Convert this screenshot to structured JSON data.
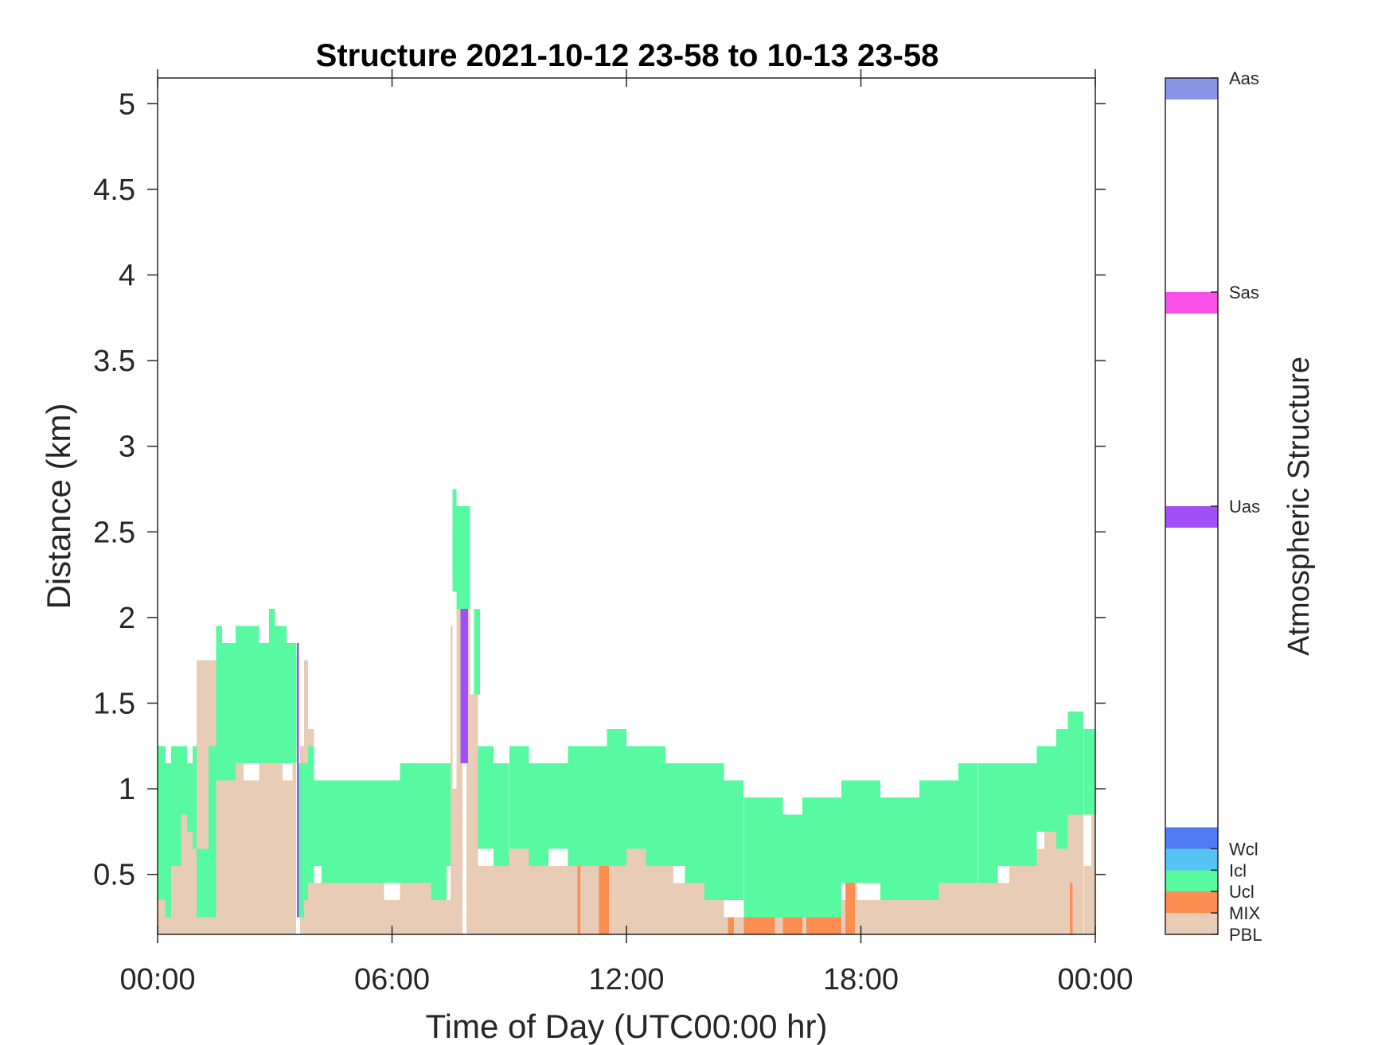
{
  "chart_data": {
    "type": "heatmap",
    "title": "Structure 2021-10-12 23-58 to 10-13 23-58",
    "xlabel": "Time of Day (UTC00:00 hr)",
    "ylabel": "Distance (km)",
    "xlim": [
      0,
      24
    ],
    "ylim": [
      0.15,
      5.15
    ],
    "x_ticks": [
      {
        "value": 0,
        "label": "00:00"
      },
      {
        "value": 6,
        "label": "06:00"
      },
      {
        "value": 12,
        "label": "12:00"
      },
      {
        "value": 18,
        "label": "18:00"
      },
      {
        "value": 24,
        "label": "00:00"
      }
    ],
    "y_ticks": [
      {
        "value": 0.5,
        "label": "0.5"
      },
      {
        "value": 1,
        "label": "1"
      },
      {
        "value": 1.5,
        "label": "1.5"
      },
      {
        "value": 2,
        "label": "2"
      },
      {
        "value": 2.5,
        "label": "2.5"
      },
      {
        "value": 3,
        "label": "3"
      },
      {
        "value": 3.5,
        "label": "3.5"
      },
      {
        "value": 4,
        "label": "4"
      },
      {
        "value": 4.5,
        "label": "4.5"
      },
      {
        "value": 5,
        "label": "5"
      }
    ],
    "grid": false,
    "colorbar": {
      "title": "Atmospheric Structure",
      "min": 0,
      "max": 20,
      "categories": [
        {
          "label": "Aas",
          "color": "#8B95E8",
          "from": 19.5,
          "to": 20,
          "tick": 20
        },
        {
          "label": "Sas",
          "color": "#FA50EA",
          "from": 14.5,
          "to": 15,
          "tick": 15
        },
        {
          "label": "Uas",
          "color": "#A050F5",
          "from": 9.5,
          "to": 10,
          "tick": 10
        },
        {
          "label": "Wcl",
          "color": "#4F7BF5",
          "from": 2,
          "to": 2.5,
          "tick": 2
        },
        {
          "label": "Icl",
          "color": "#55C4F5",
          "from": 1.5,
          "to": 2,
          "tick": 1.5
        },
        {
          "label": "Ucl",
          "color": "#57FAA0",
          "from": 1,
          "to": 1.5,
          "tick": 1
        },
        {
          "label": "MIX",
          "color": "#FC8E52",
          "from": 0.5,
          "to": 1,
          "tick": 0.5
        },
        {
          "label": "PBL",
          "color": "#E9CCB5",
          "from": 0,
          "to": 0.5,
          "tick": 0
        }
      ]
    },
    "series": [
      {
        "name": "PBL",
        "color": "#E9CCB5",
        "segments": [
          [
            0.0,
            0.2,
            0.15,
            0.35
          ],
          [
            0.2,
            0.35,
            0.15,
            0.25
          ],
          [
            0.35,
            0.5,
            0.15,
            0.55
          ],
          [
            0.5,
            0.6,
            0.15,
            0.65
          ],
          [
            0.6,
            0.75,
            0.15,
            0.85
          ],
          [
            0.75,
            0.9,
            0.15,
            0.75
          ],
          [
            0.9,
            1.0,
            0.15,
            0.65
          ],
          [
            1.0,
            1.25,
            0.15,
            1.75
          ],
          [
            1.25,
            1.5,
            0.15,
            1.75
          ],
          [
            1.5,
            1.65,
            0.15,
            1.05
          ],
          [
            1.65,
            2.0,
            0.15,
            1.05
          ],
          [
            2.0,
            2.2,
            0.15,
            1.15
          ],
          [
            2.2,
            2.6,
            0.15,
            1.05
          ],
          [
            2.6,
            3.2,
            0.15,
            1.15
          ],
          [
            3.2,
            3.45,
            0.15,
            1.05
          ],
          [
            3.45,
            3.55,
            0.15,
            1.15
          ],
          [
            3.65,
            3.75,
            0.15,
            1.25
          ],
          [
            3.75,
            3.85,
            0.15,
            1.75
          ],
          [
            3.85,
            4.0,
            0.15,
            1.35
          ],
          [
            4.0,
            4.5,
            0.15,
            0.45
          ],
          [
            4.5,
            5.8,
            0.15,
            0.45
          ],
          [
            5.8,
            6.2,
            0.15,
            0.35
          ],
          [
            6.2,
            7.0,
            0.15,
            0.45
          ],
          [
            7.0,
            7.5,
            0.15,
            0.35
          ],
          [
            7.5,
            7.55,
            0.15,
            1.95
          ],
          [
            7.55,
            7.65,
            0.15,
            1.0
          ],
          [
            7.65,
            7.8,
            0.15,
            2.05
          ],
          [
            7.9,
            8.0,
            0.15,
            2.05
          ],
          [
            8.0,
            8.2,
            0.15,
            1.55
          ],
          [
            8.2,
            8.8,
            0.15,
            0.55
          ],
          [
            8.8,
            10.0,
            0.15,
            0.65
          ],
          [
            10.0,
            10.5,
            0.15,
            0.55
          ],
          [
            10.5,
            11.0,
            0.15,
            0.65
          ],
          [
            11.0,
            11.6,
            0.15,
            0.55
          ],
          [
            11.6,
            12.5,
            0.15,
            0.65
          ],
          [
            12.5,
            13.2,
            0.15,
            0.55
          ],
          [
            13.2,
            14.2,
            0.15,
            0.45
          ],
          [
            14.2,
            14.5,
            0.15,
            0.35
          ],
          [
            14.5,
            15.2,
            0.15,
            0.25
          ],
          [
            15.2,
            16.0,
            0.15,
            0.25
          ],
          [
            16.0,
            16.5,
            0.15,
            0.25
          ],
          [
            16.5,
            17.2,
            0.15,
            0.25
          ],
          [
            17.2,
            17.6,
            0.15,
            0.35
          ],
          [
            17.6,
            17.9,
            0.15,
            0.45
          ],
          [
            17.9,
            18.5,
            0.15,
            0.35
          ],
          [
            18.5,
            19.3,
            0.15,
            0.45
          ],
          [
            19.3,
            20.0,
            0.15,
            0.35
          ],
          [
            20.0,
            20.8,
            0.15,
            0.45
          ],
          [
            20.8,
            21.8,
            0.15,
            0.45
          ],
          [
            21.8,
            22.3,
            0.15,
            0.55
          ],
          [
            22.3,
            22.7,
            0.15,
            0.65
          ],
          [
            22.7,
            23.0,
            0.15,
            0.75
          ],
          [
            23.0,
            23.3,
            0.15,
            0.65
          ],
          [
            23.3,
            23.7,
            0.15,
            0.85
          ],
          [
            23.7,
            23.9,
            0.15,
            0.55
          ],
          [
            23.9,
            24.0,
            0.15,
            0.85
          ]
        ]
      },
      {
        "name": "MIX",
        "color": "#FC8E52",
        "segments": [
          [
            10.75,
            10.82,
            0.15,
            0.55
          ],
          [
            11.3,
            11.55,
            0.15,
            0.55
          ],
          [
            14.6,
            14.75,
            0.15,
            0.25
          ],
          [
            15.0,
            15.6,
            0.15,
            0.25
          ],
          [
            15.6,
            15.8,
            0.15,
            0.35
          ],
          [
            16.0,
            16.5,
            0.15,
            0.25
          ],
          [
            16.6,
            17.5,
            0.15,
            0.25
          ],
          [
            17.6,
            17.85,
            0.15,
            0.45
          ],
          [
            23.35,
            23.42,
            0.15,
            0.45
          ]
        ]
      },
      {
        "name": "Ucl",
        "color": "#57FAA0",
        "segments": [
          [
            0.0,
            0.2,
            0.35,
            1.25
          ],
          [
            0.2,
            0.35,
            0.25,
            1.15
          ],
          [
            0.35,
            0.6,
            0.55,
            1.25
          ],
          [
            0.6,
            0.75,
            0.85,
            1.25
          ],
          [
            0.75,
            0.9,
            0.75,
            1.15
          ],
          [
            0.9,
            1.0,
            0.65,
            1.25
          ],
          [
            1.0,
            1.25,
            1.75,
            1.15
          ],
          [
            1.0,
            1.5,
            0.25,
            0.65
          ],
          [
            1.3,
            1.5,
            0.25,
            1.25
          ],
          [
            1.5,
            1.65,
            1.05,
            1.95
          ],
          [
            1.65,
            2.0,
            1.05,
            1.85
          ],
          [
            2.0,
            2.6,
            1.15,
            1.95
          ],
          [
            2.6,
            2.85,
            1.15,
            1.85
          ],
          [
            2.85,
            3.0,
            1.15,
            2.05
          ],
          [
            3.0,
            3.3,
            1.15,
            1.95
          ],
          [
            3.3,
            3.55,
            1.15,
            1.85
          ],
          [
            3.62,
            3.75,
            0.25,
            1.15
          ],
          [
            3.75,
            3.85,
            0.35,
            1.15
          ],
          [
            3.85,
            4.0,
            0.45,
            1.25
          ],
          [
            4.0,
            4.2,
            0.55,
            1.05
          ],
          [
            4.2,
            4.5,
            0.45,
            1.05
          ],
          [
            4.5,
            6.2,
            0.45,
            1.05
          ],
          [
            6.2,
            7.0,
            0.45,
            1.15
          ],
          [
            7.0,
            7.4,
            0.35,
            1.15
          ],
          [
            7.4,
            7.5,
            0.55,
            1.15
          ],
          [
            7.55,
            7.65,
            2.15,
            2.75
          ],
          [
            7.65,
            8.0,
            2.05,
            2.65
          ],
          [
            7.65,
            7.75,
            2.15,
            2.65
          ],
          [
            7.75,
            7.9,
            1.15,
            2.05
          ],
          [
            8.1,
            8.25,
            1.55,
            2.05
          ],
          [
            8.2,
            8.6,
            0.65,
            1.25
          ],
          [
            8.6,
            9.0,
            0.55,
            1.15
          ],
          [
            9.0,
            9.5,
            0.65,
            1.25
          ],
          [
            9.5,
            10.0,
            0.55,
            1.15
          ],
          [
            10.0,
            10.5,
            0.65,
            1.15
          ],
          [
            10.5,
            11.0,
            0.55,
            1.25
          ],
          [
            11.0,
            11.5,
            0.55,
            1.25
          ],
          [
            11.5,
            12.0,
            0.55,
            1.35
          ],
          [
            12.0,
            12.5,
            0.65,
            1.25
          ],
          [
            12.5,
            13.0,
            0.55,
            1.25
          ],
          [
            13.0,
            13.5,
            0.55,
            1.15
          ],
          [
            13.5,
            14.0,
            0.45,
            1.15
          ],
          [
            14.0,
            14.5,
            0.35,
            1.15
          ],
          [
            14.5,
            15.0,
            0.35,
            1.05
          ],
          [
            15.0,
            15.5,
            0.25,
            0.95
          ],
          [
            15.5,
            16.0,
            0.25,
            0.95
          ],
          [
            16.0,
            16.5,
            0.25,
            0.85
          ],
          [
            16.5,
            17.0,
            0.25,
            0.95
          ],
          [
            17.0,
            17.5,
            0.25,
            0.95
          ],
          [
            17.5,
            18.0,
            0.45,
            1.05
          ],
          [
            18.0,
            18.5,
            0.45,
            1.05
          ],
          [
            18.5,
            19.0,
            0.35,
            0.95
          ],
          [
            19.0,
            19.5,
            0.35,
            0.95
          ],
          [
            19.5,
            20.0,
            0.35,
            1.05
          ],
          [
            20.0,
            20.5,
            0.45,
            1.05
          ],
          [
            20.5,
            21.0,
            0.45,
            1.15
          ],
          [
            21.0,
            21.5,
            0.45,
            1.15
          ],
          [
            21.5,
            22.0,
            0.55,
            1.15
          ],
          [
            22.0,
            22.5,
            0.55,
            1.15
          ],
          [
            22.5,
            23.0,
            0.75,
            1.25
          ],
          [
            23.0,
            23.3,
            0.65,
            1.35
          ],
          [
            23.3,
            23.7,
            0.85,
            1.45
          ],
          [
            23.7,
            24.0,
            0.85,
            1.35
          ]
        ]
      },
      {
        "name": "Uas",
        "color": "#A050F5",
        "segments": [
          [
            3.57,
            3.62,
            0.25,
            1.85
          ],
          [
            7.75,
            7.95,
            1.15,
            2.05
          ]
        ]
      }
    ]
  }
}
